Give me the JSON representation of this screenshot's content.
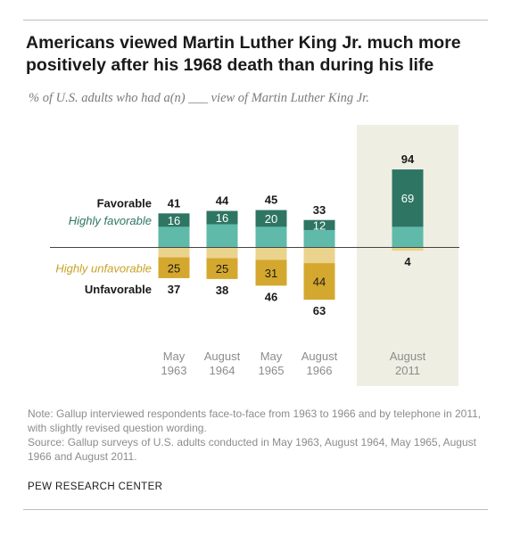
{
  "header": {
    "title": "Americans viewed Martin Luther King Jr. much more positively after his 1968 death than during his life",
    "subtitle": "% of U.S. adults who had a(n) ___ view of Martin Luther King Jr."
  },
  "footer": {
    "note": "Note: Gallup interviewed respondents face-to-face from 1963 to 1966 and by telephone in 2011, with slightly revised question wording.",
    "source": "Source: Gallup surveys of U.S. adults conducted in May 1963, August 1964, May 1965, August 1966 and August 2011.",
    "brand": "PEW RESEARCH CENTER"
  },
  "colors": {
    "highly_favorable": "#2f7563",
    "favorable": "#5fbaa9",
    "highly_unfavorable": "#d4a82e",
    "unfavorable": "#ead38d",
    "highlight_panel": "#efeee3",
    "label_favorable": "#1a1a1a",
    "label_highly_favorable": "#2f7563",
    "label_highly_unfavorable": "#c9a227"
  },
  "chart_data": {
    "type": "bar",
    "orientation": "diverging-stacked",
    "categories": [
      "May\n1963",
      "August\n1964",
      "May\n1965",
      "August\n1966",
      "August\n2011"
    ],
    "highlighted_category": "August\n2011",
    "row_labels": {
      "favorable": "Favorable",
      "highly_favorable": "Highly favorable",
      "highly_unfavorable": "Highly unfavorable",
      "unfavorable": "Unfavorable"
    },
    "series": [
      {
        "name": "Favorable",
        "values": [
          41,
          44,
          45,
          33,
          94
        ]
      },
      {
        "name": "Highly favorable",
        "values": [
          16,
          16,
          20,
          12,
          69
        ]
      },
      {
        "name": "Unfavorable",
        "values": [
          37,
          38,
          46,
          63,
          4
        ]
      },
      {
        "name": "Highly unfavorable",
        "values": [
          25,
          25,
          31,
          44,
          null
        ]
      }
    ]
  }
}
